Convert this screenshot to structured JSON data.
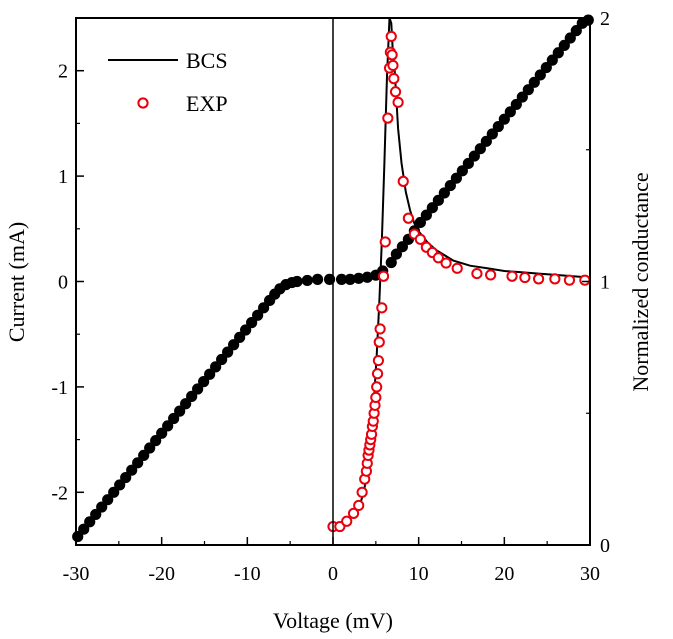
{
  "chart_data": {
    "type": "scatter",
    "xlabel": "Voltage (mV)",
    "ylabel_left": "Current (mA)",
    "ylabel_right": "Normalized conductance",
    "xlim": [
      -30,
      30
    ],
    "ylim_left": [
      -2.5,
      2.5
    ],
    "ylim_right": [
      0,
      2
    ],
    "x_ticks": [
      "-30",
      "-20",
      "-10",
      "0",
      "10",
      "20",
      "30"
    ],
    "y_left_ticks": [
      "-2",
      "-1",
      "0",
      "1",
      "2"
    ],
    "y_right_ticks": [
      "0",
      "1",
      "2"
    ],
    "legend": {
      "position": "top-left",
      "bcs_label": "BCS",
      "exp_label": "EXP"
    },
    "colors": {
      "axis": "#000000",
      "iv_points": "#000000",
      "bcs_line": "#000000",
      "exp_marker": "#e8000d"
    },
    "series": [
      {
        "axis": "left",
        "style": "filled-circle",
        "x": [
          -29.8,
          -29.1,
          -28.4,
          -27.7,
          -27.0,
          -26.3,
          -25.6,
          -24.9,
          -24.2,
          -23.5,
          -22.8,
          -22.1,
          -21.4,
          -20.7,
          -20.0,
          -19.3,
          -18.6,
          -17.9,
          -17.2,
          -16.5,
          -15.8,
          -15.1,
          -14.4,
          -13.7,
          -13.0,
          -12.3,
          -11.6,
          -10.9,
          -10.2,
          -9.5,
          -8.8,
          -8.1,
          -7.4,
          -6.8,
          -6.2,
          -5.5,
          -4.8,
          -4.2,
          -3.0,
          -1.8,
          -0.4,
          1.0,
          2.0,
          3.0,
          4.0,
          5.0,
          5.8,
          6.8,
          7.4,
          8.1,
          8.8,
          9.5,
          10.2,
          10.9,
          11.6,
          12.3,
          13.0,
          13.7,
          14.4,
          15.1,
          15.8,
          16.5,
          17.2,
          17.9,
          18.6,
          19.3,
          20.0,
          20.7,
          21.4,
          22.1,
          22.8,
          23.5,
          24.2,
          24.9,
          25.6,
          26.3,
          27.0,
          27.7,
          28.4,
          29.1,
          29.8
        ],
        "y": [
          -2.42,
          -2.35,
          -2.28,
          -2.21,
          -2.14,
          -2.07,
          -2.0,
          -1.93,
          -1.86,
          -1.79,
          -1.72,
          -1.65,
          -1.58,
          -1.51,
          -1.44,
          -1.37,
          -1.3,
          -1.23,
          -1.16,
          -1.09,
          -1.02,
          -0.95,
          -0.88,
          -0.81,
          -0.74,
          -0.67,
          -0.6,
          -0.53,
          -0.46,
          -0.39,
          -0.32,
          -0.25,
          -0.18,
          -0.12,
          -0.07,
          -0.03,
          -0.01,
          0.0,
          0.01,
          0.02,
          0.02,
          0.02,
          0.02,
          0.03,
          0.04,
          0.06,
          0.1,
          0.18,
          0.26,
          0.33,
          0.4,
          0.48,
          0.56,
          0.63,
          0.7,
          0.77,
          0.84,
          0.91,
          0.98,
          1.05,
          1.12,
          1.19,
          1.26,
          1.33,
          1.4,
          1.47,
          1.54,
          1.61,
          1.68,
          1.75,
          1.82,
          1.89,
          1.96,
          2.03,
          2.1,
          2.17,
          2.24,
          2.31,
          2.38,
          2.45,
          2.48
        ]
      },
      {
        "name": "BCS",
        "axis": "right",
        "style": "line",
        "x": [
          0.0,
          1.0,
          2.0,
          3.0,
          3.6,
          4.0,
          4.4,
          4.8,
          5.1,
          5.4,
          5.7,
          6.0,
          6.3,
          6.6,
          6.8,
          7.0,
          7.2,
          7.6,
          8.0,
          8.5,
          9.0,
          9.5,
          10.0,
          11.0,
          12.0,
          13.0,
          14.0,
          16.0,
          18.0,
          20.0,
          22.0,
          24.0,
          26.0,
          28.0,
          30.0
        ],
        "y": [
          0.07,
          0.08,
          0.1,
          0.14,
          0.2,
          0.28,
          0.4,
          0.56,
          0.72,
          0.92,
          1.15,
          1.45,
          1.78,
          2.0,
          1.98,
          1.86,
          1.8,
          1.58,
          1.45,
          1.34,
          1.27,
          1.22,
          1.19,
          1.15,
          1.12,
          1.1,
          1.08,
          1.06,
          1.05,
          1.04,
          1.035,
          1.03,
          1.025,
          1.02,
          1.015
        ]
      },
      {
        "name": "EXP",
        "axis": "right",
        "style": "open-circle",
        "x": [
          0.0,
          0.8,
          1.6,
          2.4,
          3.0,
          3.4,
          3.7,
          3.9,
          4.0,
          4.1,
          4.2,
          4.3,
          4.4,
          4.5,
          4.6,
          4.7,
          4.8,
          4.9,
          5.0,
          5.1,
          5.2,
          5.3,
          5.4,
          5.5,
          5.7,
          5.9,
          6.1,
          6.4,
          6.6,
          6.7,
          6.8,
          6.9,
          7.0,
          7.1,
          7.3,
          7.6,
          8.2,
          8.8,
          9.5,
          10.2,
          10.9,
          11.6,
          12.3,
          13.2,
          14.5,
          16.8,
          18.4,
          20.9,
          22.4,
          24.0,
          25.9,
          27.6,
          29.4
        ],
        "y": [
          0.07,
          0.07,
          0.09,
          0.12,
          0.15,
          0.2,
          0.25,
          0.28,
          0.31,
          0.34,
          0.36,
          0.38,
          0.4,
          0.42,
          0.45,
          0.47,
          0.5,
          0.53,
          0.56,
          0.6,
          0.65,
          0.7,
          0.77,
          0.82,
          0.9,
          1.02,
          1.15,
          1.62,
          1.81,
          1.87,
          1.93,
          1.86,
          1.82,
          1.77,
          1.72,
          1.68,
          1.38,
          1.24,
          1.18,
          1.16,
          1.13,
          1.11,
          1.09,
          1.07,
          1.05,
          1.03,
          1.025,
          1.02,
          1.015,
          1.01,
          1.01,
          1.005,
          1.005
        ]
      }
    ]
  }
}
